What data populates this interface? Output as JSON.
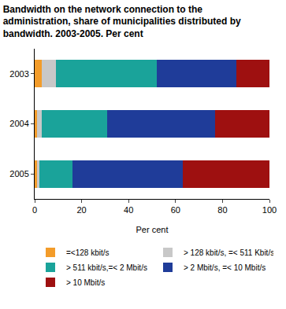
{
  "chart_data": {
    "type": "bar",
    "title": "Bandwidth on the network connection to the administration, share of municipalities distributed by bandwidth. 2003-2005. Per cent",
    "x_label": "Per cent",
    "orientation": "horizontal",
    "stacked": true,
    "grid": false,
    "legend": "bottom",
    "categories": [
      "2003",
      "2004",
      "2005"
    ],
    "series": [
      {
        "name": "=<128 kbit/s",
        "color": "#f39c2a",
        "values": [
          3,
          1,
          1
        ]
      },
      {
        "name": "> 128 kbit/s, =< 511 Kbit/s",
        "color": "#c8c8c8",
        "values": [
          6,
          2,
          1
        ]
      },
      {
        "name": "> 511 kbit/s,=< 2 Mbit/s",
        "color": "#1aa39a",
        "values": [
          43,
          28,
          14
        ]
      },
      {
        "name": "> 2 Mbit/s, =< 10 Mbit/s",
        "color": "#1f3c99",
        "values": [
          34,
          46,
          47
        ]
      },
      {
        "name": "> 10 Mbit/s",
        "color": "#9e1010",
        "values": [
          14,
          23,
          37
        ]
      }
    ],
    "xlim": [
      0,
      100
    ],
    "xticks": [
      0,
      20,
      40,
      60,
      80,
      100
    ]
  }
}
